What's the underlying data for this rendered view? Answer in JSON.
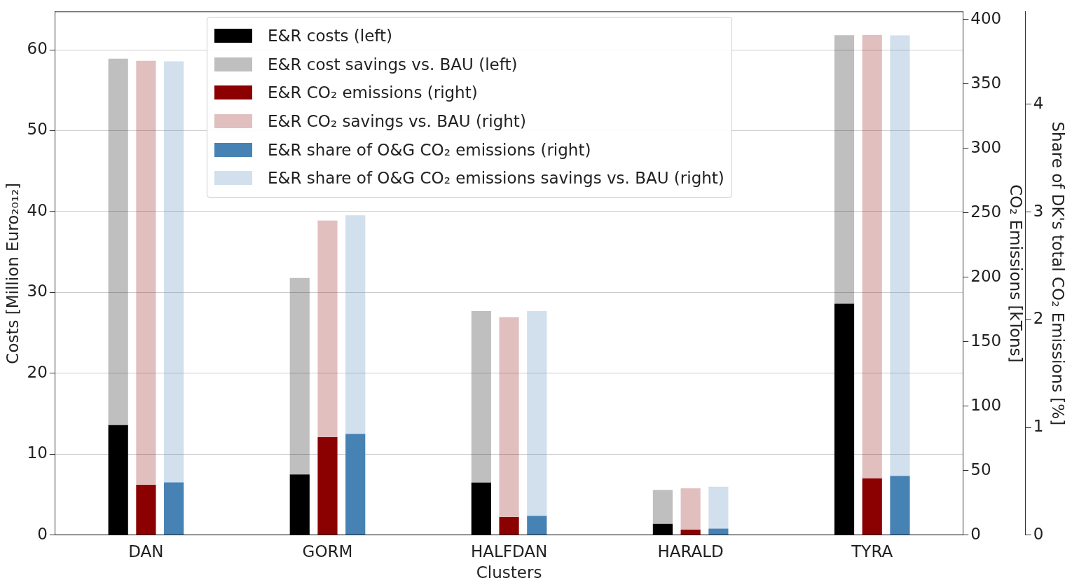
{
  "chart_data": {
    "type": "bar",
    "stacked": true,
    "xlabel": "Clusters",
    "ylabel": "Costs [Million Euro₂₀₁₂]",
    "y2label": "CO₂ Emissions [kTons]",
    "y3label": "Share of DK's total CO₂ Emissions [%]",
    "categories": [
      "DAN",
      "GORM",
      "HALFDAN",
      "HARALD",
      "TYRA"
    ],
    "series": [
      {
        "name": "E&R costs (left)",
        "color": "#000000",
        "values": [
          13.6,
          7.5,
          6.5,
          1.4,
          28.6
        ]
      },
      {
        "name": "E&R cost savings vs. BAU (left)",
        "color": "#000000",
        "values": [
          45.3,
          24.3,
          21.2,
          4.2,
          33.2
        ]
      },
      {
        "name": "E&R CO₂ emissions (right)",
        "color": "#8b0000",
        "axis": "y2",
        "values": [
          39,
          76,
          14,
          4.3,
          44
        ]
      },
      {
        "name": "E&R CO₂ savings vs. BAU (right)",
        "color": "#8b0000",
        "axis": "y2",
        "values": [
          329,
          168,
          155,
          32,
          344
        ]
      },
      {
        "name": "E&R share of O&G CO₂ emissions (right)",
        "color": "#4682b4",
        "axis": "y3",
        "values": [
          0.49,
          0.94,
          0.18,
          0.06,
          0.55
        ]
      },
      {
        "name": "E&R share of O&G CO₂ emissions savings vs. BAU (right)",
        "color": "#4682b4",
        "axis": "y3",
        "values": [
          3.91,
          2.03,
          1.9,
          0.39,
          4.09
        ]
      }
    ],
    "ylim": [
      0,
      64.7
    ],
    "yticks": [
      0,
      10,
      20,
      30,
      40,
      50,
      60
    ],
    "y2lim": [
      0,
      406
    ],
    "y2ticks": [
      0,
      50,
      100,
      150,
      200,
      250,
      300,
      350,
      400
    ],
    "y3lim": [
      0,
      4.86
    ],
    "y3ticks": [
      0,
      1,
      2,
      3,
      4
    ],
    "grid": "y",
    "legend": "top"
  }
}
